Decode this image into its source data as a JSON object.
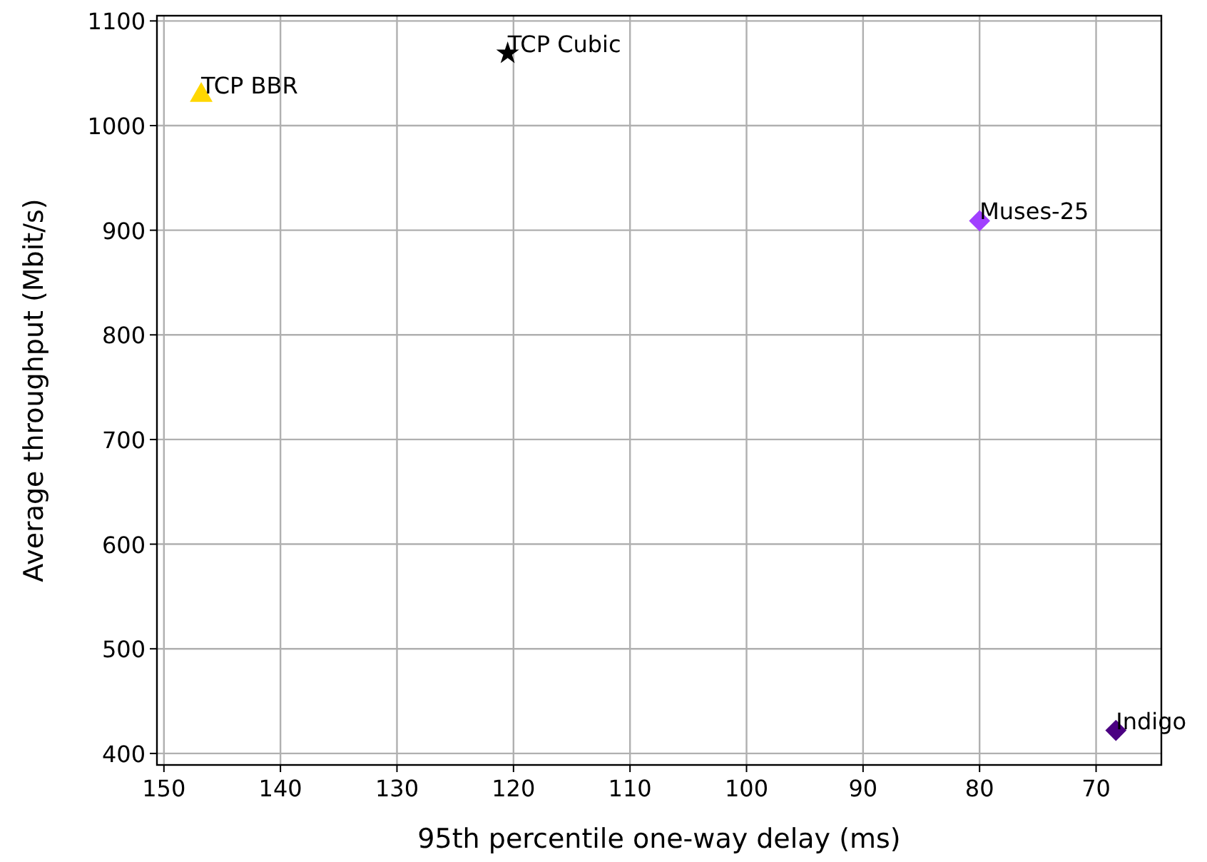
{
  "chart_data": {
    "type": "scatter",
    "xlabel": "95th percentile one-way delay (ms)",
    "ylabel": "Average throughput (Mbit/s)",
    "xlim": [
      150.6,
      64.4
    ],
    "ylim": [
      389,
      1105
    ],
    "xticks": [
      150,
      140,
      130,
      120,
      110,
      100,
      90,
      80,
      70
    ],
    "yticks": [
      400,
      500,
      600,
      700,
      800,
      900,
      1000,
      1100
    ],
    "grid": true,
    "series": [
      {
        "name": "TCP BBR",
        "color": "#ffd700",
        "marker": "triangle",
        "x": [
          146.8
        ],
        "values": [
          1029
        ]
      },
      {
        "name": "TCP Cubic",
        "color": "#000000",
        "marker": "star",
        "x": [
          120.5
        ],
        "values": [
          1069
        ]
      },
      {
        "name": "Muses-25",
        "color": "#a040ff",
        "marker": "diamond",
        "x": [
          80.0
        ],
        "values": [
          909
        ]
      },
      {
        "name": "Indigo",
        "color": "#4b0082",
        "marker": "diamond",
        "x": [
          68.3
        ],
        "values": [
          422
        ]
      }
    ]
  }
}
